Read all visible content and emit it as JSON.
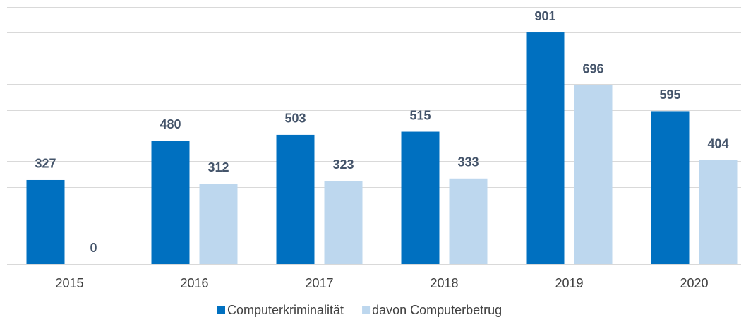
{
  "chart_data": {
    "type": "bar",
    "categories": [
      "2015",
      "2016",
      "2017",
      "2018",
      "2019",
      "2020"
    ],
    "series": [
      {
        "name": "Computerkriminalität",
        "color": "#0070c0",
        "values": [
          327,
          480,
          503,
          515,
          901,
          595
        ]
      },
      {
        "name": "davon Computerbetrug",
        "color": "#bdd7ee",
        "values": [
          0,
          312,
          323,
          333,
          696,
          404
        ]
      }
    ],
    "ylim": [
      0,
      1000
    ],
    "yticks": [
      0,
      100,
      200,
      300,
      400,
      500,
      600,
      700,
      800,
      900,
      1000
    ],
    "grid": true,
    "legend": "bottom"
  }
}
